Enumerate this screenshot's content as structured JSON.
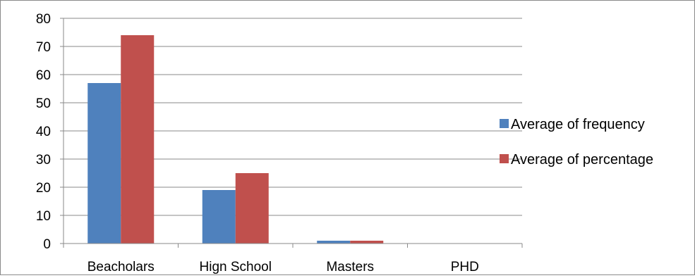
{
  "chart_data": {
    "type": "bar",
    "categories": [
      "Beacholars",
      "Hign School",
      "Masters",
      "PHD"
    ],
    "series": [
      {
        "name": "Average of frequency",
        "values": [
          57,
          19,
          1,
          0
        ],
        "color": "#4f81bd"
      },
      {
        "name": "Average of percentage",
        "values": [
          74,
          25,
          1,
          0
        ],
        "color": "#c0504d"
      }
    ],
    "ylim": [
      0,
      80
    ],
    "yticks": [
      0,
      10,
      20,
      30,
      40,
      50,
      60,
      70,
      80
    ],
    "grid": true,
    "legend": "right",
    "gridline_color": "#8a8a8a",
    "axis_color": "#8a8a8a"
  }
}
